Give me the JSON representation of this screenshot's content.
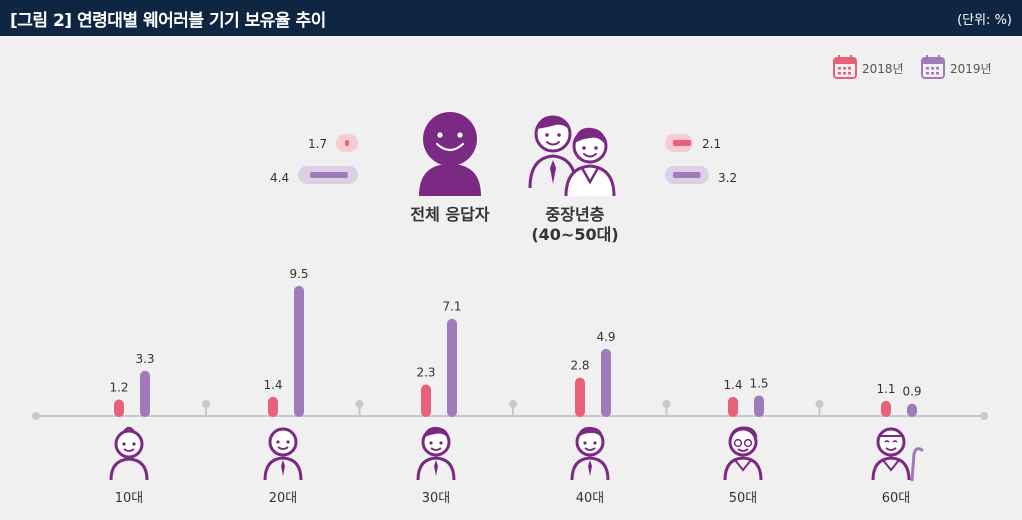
{
  "header": {
    "title": "[그림 2]  연령대별 웨어러블 기기 보유율 추이",
    "unit": "(단위: %)"
  },
  "colors": {
    "header_bg": "#0f2643",
    "series_2018": "#e8607a",
    "series_2019": "#a17bb9",
    "figure_purple": "#7a2a83",
    "axis": "#c8c8c8"
  },
  "legend": [
    "2018년",
    "2019년"
  ],
  "summary": {
    "overall": {
      "label": "전체 응답자",
      "v2018": 1.7,
      "v2019": 4.4
    },
    "middle_aged": {
      "label_line1": "중장년층",
      "label_line2": "(40~50대)",
      "v2018": 2.1,
      "v2019": 3.2
    }
  },
  "chart_data": {
    "type": "bar",
    "title": "",
    "xlabel": "",
    "ylabel": "",
    "categories": [
      "10대",
      "20대",
      "30대",
      "40대",
      "50대",
      "60대"
    ],
    "series": [
      {
        "name": "2018년",
        "values": [
          1.2,
          1.4,
          2.3,
          2.8,
          1.4,
          1.1
        ]
      },
      {
        "name": "2019년",
        "values": [
          3.3,
          9.5,
          7.1,
          4.9,
          1.5,
          0.9
        ]
      }
    ],
    "ylim": [
      0,
      10
    ],
    "grid": false,
    "legend_position": "top-right"
  }
}
